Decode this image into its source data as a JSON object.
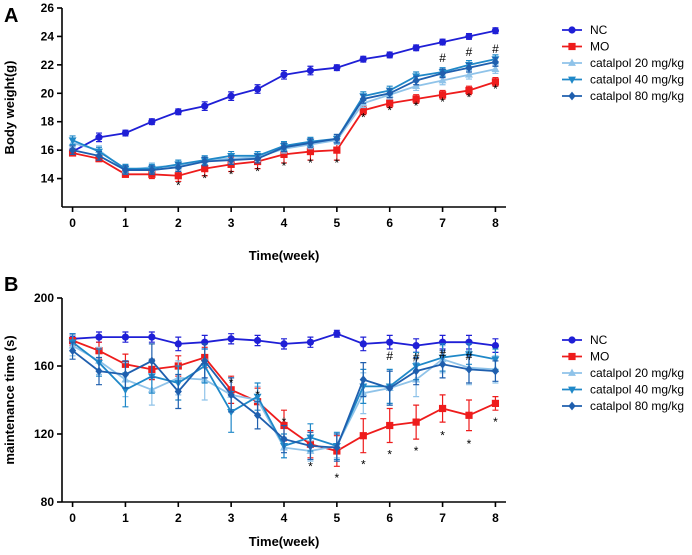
{
  "colors": {
    "NC": "#1f1fd6",
    "MO": "#ee1c1c",
    "cat20": "#8fc3e9",
    "cat40": "#1f88c8",
    "cat80": "#1f5fae"
  },
  "chart_data": [
    {
      "panel": "A",
      "type": "line",
      "xlabel": "Time(week)",
      "ylabel": "Body weight(g)",
      "xlim": [
        -0.2,
        8.2
      ],
      "ylim": [
        12,
        26
      ],
      "xticks": [
        0,
        1,
        2,
        3,
        4,
        5,
        6,
        7,
        8
      ],
      "yticks": [
        14,
        16,
        18,
        20,
        22,
        24,
        26
      ],
      "x": [
        0,
        0.5,
        1,
        1.5,
        2,
        2.5,
        3,
        3.5,
        4,
        4.5,
        5,
        5.5,
        6,
        6.5,
        7,
        7.5,
        8
      ],
      "series": [
        {
          "name": "NC",
          "marker": "circle",
          "color_key": "NC",
          "values": [
            15.9,
            16.9,
            17.2,
            18.0,
            18.7,
            19.1,
            19.8,
            20.3,
            21.3,
            21.6,
            21.8,
            22.4,
            22.7,
            23.2,
            23.6,
            24.0,
            24.4
          ],
          "err": [
            0.2,
            0.3,
            0.2,
            0.2,
            0.2,
            0.3,
            0.3,
            0.3,
            0.3,
            0.3,
            0.2,
            0.2,
            0.2,
            0.2,
            0.2,
            0.2,
            0.2
          ]
        },
        {
          "name": "MO",
          "marker": "square",
          "color_key": "MO",
          "values": [
            15.8,
            15.4,
            14.3,
            14.3,
            14.2,
            14.7,
            15.0,
            15.2,
            15.7,
            15.9,
            16.0,
            18.8,
            19.3,
            19.6,
            19.9,
            20.2,
            20.8
          ],
          "err": [
            0.2,
            0.2,
            0.2,
            0.3,
            0.4,
            0.5,
            0.5,
            0.5,
            0.6,
            0.6,
            0.7,
            0.3,
            0.3,
            0.3,
            0.3,
            0.3,
            0.3
          ]
        },
        {
          "name": "catalpol 20 mg/kg",
          "marker": "triangle-up",
          "color_key": "cat20",
          "values": [
            16.5,
            16.0,
            14.6,
            14.8,
            14.9,
            15.3,
            15.4,
            15.5,
            16.1,
            16.4,
            16.7,
            19.3,
            19.9,
            20.5,
            20.9,
            21.3,
            21.7
          ],
          "err": [
            0.3,
            0.3,
            0.3,
            0.3,
            0.3,
            0.3,
            0.3,
            0.3,
            0.3,
            0.3,
            0.3,
            0.3,
            0.3,
            0.3,
            0.3,
            0.3,
            0.3
          ]
        },
        {
          "name": "catalpol 40 mg/kg",
          "marker": "triangle-down",
          "color_key": "cat40",
          "values": [
            16.7,
            15.9,
            14.7,
            14.7,
            15.0,
            15.3,
            15.6,
            15.6,
            16.3,
            16.6,
            16.8,
            19.8,
            20.2,
            21.2,
            21.5,
            22.0,
            22.4
          ],
          "err": [
            0.3,
            0.3,
            0.3,
            0.3,
            0.3,
            0.3,
            0.3,
            0.3,
            0.3,
            0.3,
            0.3,
            0.3,
            0.3,
            0.3,
            0.3,
            0.3,
            0.3
          ]
        },
        {
          "name": "catalpol 80 mg/kg",
          "marker": "diamond",
          "color_key": "cat80",
          "values": [
            16.0,
            15.6,
            14.6,
            14.6,
            14.8,
            15.2,
            15.3,
            15.4,
            16.2,
            16.5,
            16.8,
            19.6,
            20.0,
            20.9,
            21.4,
            21.8,
            22.2
          ],
          "err": [
            0.3,
            0.3,
            0.3,
            0.3,
            0.3,
            0.3,
            0.3,
            0.3,
            0.3,
            0.3,
            0.3,
            0.3,
            0.3,
            0.3,
            0.3,
            0.3,
            0.3
          ]
        }
      ],
      "annotations": [
        {
          "x": 2,
          "y": 13.5,
          "text": "*"
        },
        {
          "x": 2.5,
          "y": 14.0,
          "text": "*"
        },
        {
          "x": 3,
          "y": 14.3,
          "text": "*"
        },
        {
          "x": 3.5,
          "y": 14.5,
          "text": "*"
        },
        {
          "x": 4,
          "y": 14.9,
          "text": "*"
        },
        {
          "x": 4.5,
          "y": 15.1,
          "text": "*"
        },
        {
          "x": 5,
          "y": 15.1,
          "text": "*"
        },
        {
          "x": 5.5,
          "y": 18.3,
          "text": "*"
        },
        {
          "x": 6,
          "y": 18.8,
          "text": "*"
        },
        {
          "x": 6.5,
          "y": 19.1,
          "text": "*"
        },
        {
          "x": 7,
          "y": 19.4,
          "text": "*"
        },
        {
          "x": 7.5,
          "y": 19.7,
          "text": "*"
        },
        {
          "x": 8,
          "y": 20.3,
          "text": "*"
        },
        {
          "x": 7,
          "y": 22.5,
          "text": "#"
        },
        {
          "x": 7.5,
          "y": 22.9,
          "text": "#"
        },
        {
          "x": 8,
          "y": 23.1,
          "text": "#"
        }
      ]
    },
    {
      "panel": "B",
      "type": "line",
      "xlabel": "Time(week)",
      "ylabel": "maintenance time (s)",
      "xlim": [
        -0.2,
        8.2
      ],
      "ylim": [
        80,
        200
      ],
      "xticks": [
        0,
        1,
        2,
        3,
        4,
        5,
        6,
        7,
        8
      ],
      "yticks": [
        80,
        120,
        160,
        200
      ],
      "x": [
        0,
        0.5,
        1,
        1.5,
        2,
        2.5,
        3,
        3.5,
        4,
        4.5,
        5,
        5.5,
        6,
        6.5,
        7,
        7.5,
        8
      ],
      "series": [
        {
          "name": "NC",
          "marker": "circle",
          "color_key": "NC",
          "values": [
            176,
            177,
            177,
            177,
            173,
            174,
            176,
            175,
            173,
            174,
            179,
            173,
            174,
            172,
            174,
            174,
            172
          ],
          "err": [
            3,
            3,
            3,
            3,
            4,
            4,
            3,
            3,
            3,
            3,
            2,
            4,
            4,
            4,
            4,
            4,
            4
          ]
        },
        {
          "name": "MO",
          "marker": "square",
          "color_key": "MO",
          "values": [
            175,
            169,
            161,
            158,
            160,
            165,
            146,
            139,
            125,
            114,
            110,
            119,
            125,
            127,
            135,
            131,
            138
          ],
          "err": [
            3,
            5,
            6,
            6,
            6,
            6,
            8,
            8,
            9,
            8,
            9,
            10,
            10,
            10,
            8,
            9,
            4
          ]
        },
        {
          "name": "catalpol 20 mg/kg",
          "marker": "triangle-up",
          "color_key": "cat20",
          "values": [
            172,
            163,
            152,
            146,
            153,
            152,
            143,
            140,
            112,
            110,
            113,
            144,
            147,
            152,
            164,
            159,
            158
          ],
          "err": [
            6,
            8,
            10,
            9,
            10,
            12,
            10,
            8,
            6,
            6,
            7,
            12,
            10,
            10,
            8,
            10,
            8
          ]
        },
        {
          "name": "catalpol 40 mg/kg",
          "marker": "triangle-down",
          "color_key": "cat40",
          "values": [
            174,
            162,
            146,
            154,
            150,
            160,
            133,
            142,
            113,
            118,
            113,
            148,
            148,
            160,
            165,
            167,
            164
          ],
          "err": [
            5,
            8,
            10,
            10,
            10,
            10,
            12,
            8,
            7,
            8,
            8,
            10,
            10,
            8,
            8,
            6,
            6
          ]
        },
        {
          "name": "catalpol 80 mg/kg",
          "marker": "diamond",
          "color_key": "cat80",
          "values": [
            169,
            157,
            155,
            163,
            145,
            163,
            143,
            131,
            117,
            113,
            112,
            152,
            147,
            157,
            161,
            158,
            157
          ],
          "err": [
            5,
            8,
            8,
            10,
            10,
            10,
            10,
            8,
            8,
            8,
            8,
            10,
            10,
            8,
            8,
            8,
            6
          ]
        }
      ],
      "annotations": [
        {
          "x": 3,
          "y": 150,
          "text": "*"
        },
        {
          "x": 3.5,
          "y": 143,
          "text": "*"
        },
        {
          "x": 4,
          "y": 127,
          "text": "*"
        },
        {
          "x": 4.5,
          "y": 101,
          "text": "*"
        },
        {
          "x": 5,
          "y": 94,
          "text": "*"
        },
        {
          "x": 5.5,
          "y": 102,
          "text": "*"
        },
        {
          "x": 6,
          "y": 108,
          "text": "*"
        },
        {
          "x": 6.5,
          "y": 110,
          "text": "*"
        },
        {
          "x": 7,
          "y": 119,
          "text": "*"
        },
        {
          "x": 7.5,
          "y": 114,
          "text": "*"
        },
        {
          "x": 8,
          "y": 127,
          "text": "*"
        },
        {
          "x": 6,
          "y": 166,
          "text": "#"
        },
        {
          "x": 6.5,
          "y": 165,
          "text": "#"
        },
        {
          "x": 7,
          "y": 167,
          "text": "#"
        },
        {
          "x": 7.5,
          "y": 166,
          "text": "#"
        }
      ]
    }
  ]
}
